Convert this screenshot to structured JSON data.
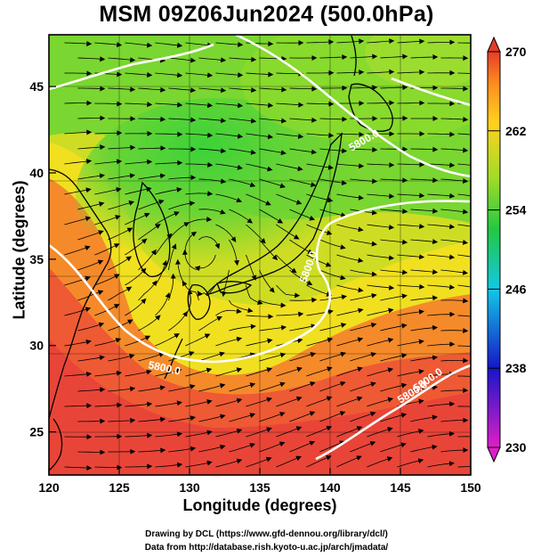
{
  "title": "MSM 09Z06Jun2024 (500.0hPa)",
  "map": {
    "xlabel": "Longitude (degrees)",
    "ylabel": "Latitude  (degrees)",
    "x_ticks": [
      "120",
      "125",
      "130",
      "135",
      "140",
      "145",
      "150"
    ],
    "y_ticks": [
      "25",
      "30",
      "35",
      "40",
      "45"
    ],
    "lon_range": [
      120,
      150
    ],
    "lat_range": [
      22.5,
      48
    ],
    "contours": [
      {
        "label": "5800.0"
      },
      {
        "label": "5800.0"
      },
      {
        "label": "5800.0"
      },
      {
        "label": "5800.0"
      },
      {
        "label": "5800.0"
      }
    ]
  },
  "colorbar": {
    "ticks": [
      "270",
      "262",
      "254",
      "246",
      "238",
      "230"
    ],
    "range": [
      230,
      270
    ]
  },
  "credits": {
    "line1": "Drawing by DCL (https://www.gfd-dennou.org/library/dcl/)",
    "line2": "Data from http://database.rish.kyoto-u.ac.jp/arch/jmadata/"
  },
  "colors": {
    "warm": "#e8463a",
    "mid": "#f2a020",
    "green": "#3ccc3c",
    "contour": "#ffffff",
    "coast": "#000000"
  }
}
